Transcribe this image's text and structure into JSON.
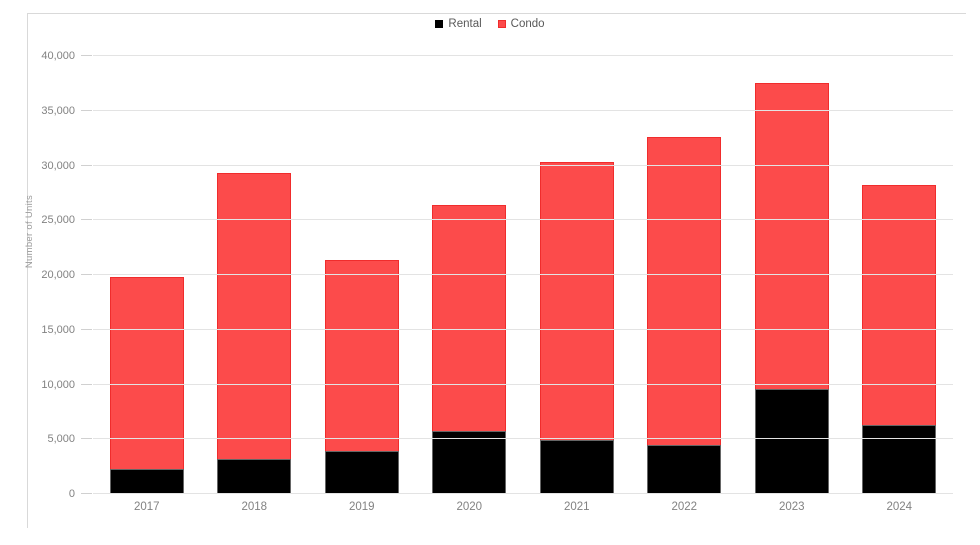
{
  "chart_data": {
    "type": "bar",
    "stacked": true,
    "title": "",
    "categories": [
      "2017",
      "2018",
      "2019",
      "2020",
      "2021",
      "2022",
      "2023",
      "2024"
    ],
    "series": [
      {
        "name": "Rental",
        "fill": "#000000",
        "stroke": "#666666",
        "values": [
          2300,
          3200,
          3900,
          5800,
          4900,
          4500,
          9600,
          6300
        ]
      },
      {
        "name": "Condo",
        "fill": "#fc4b4b",
        "stroke": "#f02c2c",
        "values": [
          17500,
          26100,
          17500,
          20600,
          25400,
          28100,
          27900,
          21900
        ]
      }
    ],
    "totals": [
      19800,
      29300,
      21400,
      26400,
      30300,
      32600,
      37500,
      28200
    ],
    "xlabel": "",
    "ylabel": "Number of Units",
    "ylim": [
      0,
      40000
    ],
    "ytick_interval": 5000,
    "ytick_labels": [
      "0",
      "5,000",
      "10,000",
      "15,000",
      "20,000",
      "25,000",
      "30,000",
      "35,000",
      "40,000"
    ],
    "grid": true,
    "legend_position": "top-center"
  },
  "colors": {
    "rental": "#000000",
    "condo": "#fc4b4b",
    "condo_border": "#f02c2c",
    "gridline": "#e3e3e3",
    "frame_border": "#d9d9d9",
    "axis_text": "#828282",
    "legend_text": "#595959"
  }
}
